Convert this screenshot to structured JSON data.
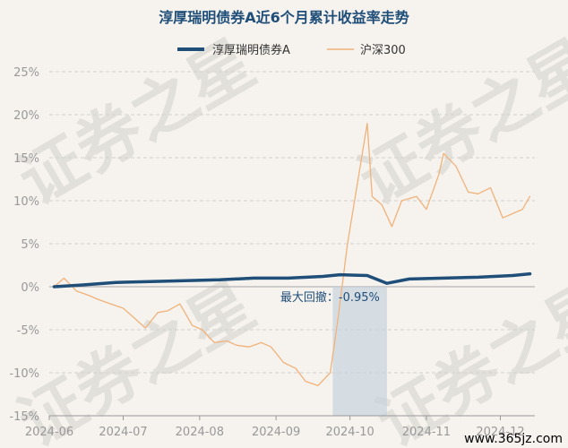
{
  "chart_data": {
    "type": "line",
    "title": "淳厚瑞明债券A近6个月累计收益率走势",
    "xlabel": "",
    "ylabel": "",
    "x_ticks": [
      "2024-06",
      "2024-07",
      "2024-08",
      "2024-09",
      "2024-10",
      "2024-11",
      "2024-12"
    ],
    "y_ticks": [
      "25%",
      "20%",
      "15%",
      "10%",
      "5%",
      "0%",
      "-5%",
      "-10%",
      "-15%"
    ],
    "ylim": [
      -15,
      25
    ],
    "grid": "horizontal dashed",
    "legend_position": "top",
    "series": [
      {
        "name": "淳厚瑞明债券A",
        "color": "#1f4e79",
        "points": [
          [
            "2024-06-03",
            0.0
          ],
          [
            "2024-06-14",
            0.2
          ],
          [
            "2024-06-28",
            0.5
          ],
          [
            "2024-07-12",
            0.6
          ],
          [
            "2024-07-26",
            0.7
          ],
          [
            "2024-08-09",
            0.8
          ],
          [
            "2024-08-23",
            1.0
          ],
          [
            "2024-09-06",
            1.0
          ],
          [
            "2024-09-20",
            1.2
          ],
          [
            "2024-09-27",
            1.4
          ],
          [
            "2024-10-08",
            1.3
          ],
          [
            "2024-10-16",
            0.4
          ],
          [
            "2024-10-25",
            0.9
          ],
          [
            "2024-11-08",
            1.0
          ],
          [
            "2024-11-22",
            1.1
          ],
          [
            "2024-12-06",
            1.3
          ],
          [
            "2024-12-13",
            1.5
          ]
        ]
      },
      {
        "name": "沪深300",
        "color": "#f0b27a",
        "points": [
          [
            "2024-06-03",
            0.0
          ],
          [
            "2024-06-07",
            1.0
          ],
          [
            "2024-06-12",
            -0.5
          ],
          [
            "2024-06-17",
            -1.0
          ],
          [
            "2024-06-21",
            -1.5
          ],
          [
            "2024-06-26",
            -2.0
          ],
          [
            "2024-07-01",
            -2.5
          ],
          [
            "2024-07-05",
            -3.5
          ],
          [
            "2024-07-10",
            -4.8
          ],
          [
            "2024-07-15",
            -3.0
          ],
          [
            "2024-07-19",
            -2.8
          ],
          [
            "2024-07-24",
            -2.0
          ],
          [
            "2024-07-29",
            -4.5
          ],
          [
            "2024-08-02",
            -5.0
          ],
          [
            "2024-08-07",
            -6.5
          ],
          [
            "2024-08-12",
            -6.3
          ],
          [
            "2024-08-16",
            -6.8
          ],
          [
            "2024-08-21",
            -7.0
          ],
          [
            "2024-08-26",
            -6.5
          ],
          [
            "2024-08-30",
            -7.0
          ],
          [
            "2024-09-04",
            -8.8
          ],
          [
            "2024-09-09",
            -9.5
          ],
          [
            "2024-09-13",
            -11.0
          ],
          [
            "2024-09-18",
            -11.5
          ],
          [
            "2024-09-23",
            -10.0
          ],
          [
            "2024-09-26",
            -4.0
          ],
          [
            "2024-09-30",
            5.0
          ],
          [
            "2024-10-08",
            19.0
          ],
          [
            "2024-10-10",
            10.5
          ],
          [
            "2024-10-14",
            9.5
          ],
          [
            "2024-10-18",
            7.0
          ],
          [
            "2024-10-22",
            10.0
          ],
          [
            "2024-10-28",
            10.5
          ],
          [
            "2024-11-01",
            9.0
          ],
          [
            "2024-11-06",
            13.0
          ],
          [
            "2024-11-08",
            15.5
          ],
          [
            "2024-11-13",
            14.0
          ],
          [
            "2024-11-18",
            11.0
          ],
          [
            "2024-11-22",
            10.8
          ],
          [
            "2024-11-27",
            11.5
          ],
          [
            "2024-12-02",
            8.0
          ],
          [
            "2024-12-06",
            8.5
          ],
          [
            "2024-12-10",
            9.0
          ],
          [
            "2024-12-13",
            10.5
          ]
        ]
      }
    ],
    "annotations": [
      {
        "label": "最大回撤：-0.95%",
        "type": "shaded-range",
        "x_start": "2024-09-24",
        "x_end": "2024-10-16"
      }
    ]
  },
  "watermark": {
    "text": "证券之星"
  },
  "footer": {
    "site": "www.365jz.com"
  },
  "colors": {
    "background": "#f6f3ee",
    "grid": "#cfcfcf",
    "title": "#1f4e79",
    "shade": "#c7d3de"
  }
}
